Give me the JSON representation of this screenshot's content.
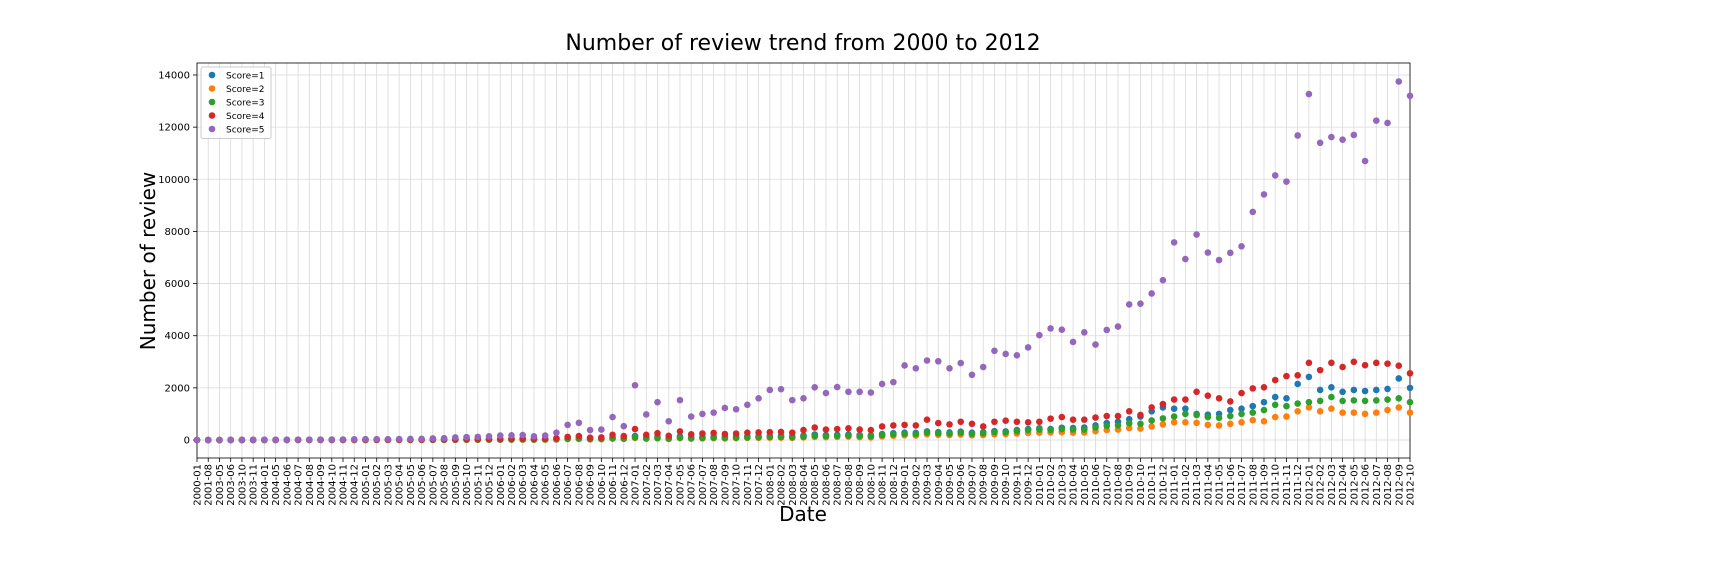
{
  "chart_data": {
    "type": "scatter",
    "title": "Number of review trend from 2000 to 2012",
    "x_label": "Date",
    "y_label": "Number of review",
    "grid": true,
    "legend": "upper left",
    "ylim": [
      -690,
      14460
    ],
    "yticks": [
      0,
      2000,
      4000,
      6000,
      8000,
      10000,
      12000,
      14000
    ],
    "categories": [
      "2000-01",
      "2001-08",
      "2003-05",
      "2003-06",
      "2003-10",
      "2003-11",
      "2004-01",
      "2004-05",
      "2004-06",
      "2004-07",
      "2004-08",
      "2004-09",
      "2004-10",
      "2004-11",
      "2004-12",
      "2005-01",
      "2005-02",
      "2005-03",
      "2005-04",
      "2005-05",
      "2005-06",
      "2005-07",
      "2005-08",
      "2005-09",
      "2005-10",
      "2005-11",
      "2005-12",
      "2006-01",
      "2006-02",
      "2006-03",
      "2006-04",
      "2006-05",
      "2006-06",
      "2006-07",
      "2006-08",
      "2006-09",
      "2006-10",
      "2006-11",
      "2006-12",
      "2007-01",
      "2007-02",
      "2007-03",
      "2007-04",
      "2007-05",
      "2007-06",
      "2007-07",
      "2007-08",
      "2007-09",
      "2007-10",
      "2007-11",
      "2007-12",
      "2008-01",
      "2008-02",
      "2008-03",
      "2008-04",
      "2008-05",
      "2008-06",
      "2008-07",
      "2008-08",
      "2008-09",
      "2008-10",
      "2008-11",
      "2008-12",
      "2009-01",
      "2009-02",
      "2009-03",
      "2009-04",
      "2009-05",
      "2009-06",
      "2009-07",
      "2009-08",
      "2009-09",
      "2009-10",
      "2009-11",
      "2009-12",
      "2010-01",
      "2010-02",
      "2010-03",
      "2010-04",
      "2010-05",
      "2010-06",
      "2010-07",
      "2010-08",
      "2010-09",
      "2010-10",
      "2010-11",
      "2010-12",
      "2011-01",
      "2011-02",
      "2011-03",
      "2011-04",
      "2011-05",
      "2011-06",
      "2011-07",
      "2011-08",
      "2011-09",
      "2011-10",
      "2011-11",
      "2011-12",
      "2012-01",
      "2012-02",
      "2012-03",
      "2012-04",
      "2012-05",
      "2012-06",
      "2012-07",
      "2012-08",
      "2012-09",
      "2012-10"
    ],
    "series": [
      {
        "name": "Score=1",
        "color": "#1f77b4",
        "values": [
          0,
          0,
          0,
          1,
          1,
          1,
          2,
          2,
          2,
          3,
          3,
          3,
          4,
          4,
          5,
          6,
          6,
          6,
          7,
          7,
          8,
          10,
          12,
          14,
          16,
          18,
          20,
          22,
          25,
          28,
          25,
          28,
          35,
          60,
          70,
          45,
          50,
          90,
          70,
          150,
          90,
          120,
          80,
          140,
          100,
          110,
          120,
          110,
          120,
          130,
          140,
          150,
          160,
          140,
          170,
          210,
          190,
          200,
          210,
          190,
          180,
          230,
          260,
          280,
          270,
          330,
          300,
          290,
          320,
          280,
          300,
          340,
          330,
          380,
          420,
          450,
          420,
          470,
          460,
          480,
          560,
          650,
          700,
          800,
          900,
          1100,
          1250,
          1200,
          1200,
          1000,
          970,
          1000,
          1150,
          1200,
          1300,
          1450,
          1650,
          1600,
          2150,
          2420,
          1920,
          2020,
          1850,
          1920,
          1880,
          1920,
          1960,
          2360,
          2000
        ]
      },
      {
        "name": "Score=2",
        "color": "#ff7f0e",
        "values": [
          0,
          0,
          0,
          1,
          1,
          1,
          1,
          1,
          2,
          2,
          2,
          2,
          2,
          3,
          3,
          3,
          4,
          4,
          4,
          5,
          5,
          6,
          7,
          8,
          9,
          10,
          11,
          12,
          14,
          15,
          14,
          15,
          20,
          35,
          40,
          25,
          30,
          50,
          40,
          80,
          50,
          60,
          40,
          70,
          50,
          60,
          70,
          60,
          70,
          80,
          80,
          90,
          90,
          80,
          100,
          120,
          110,
          120,
          130,
          110,
          100,
          140,
          160,
          180,
          170,
          220,
          200,
          190,
          210,
          180,
          190,
          220,
          230,
          250,
          270,
          280,
          290,
          300,
          280,
          290,
          340,
          380,
          400,
          460,
          440,
          520,
          600,
          680,
          680,
          660,
          580,
          560,
          620,
          680,
          760,
          720,
          880,
          900,
          1100,
          1250,
          1100,
          1200,
          1050,
          1050,
          1000,
          1050,
          1150,
          1250,
          1050
        ]
      },
      {
        "name": "Score=3",
        "color": "#2ca02c",
        "values": [
          0,
          0,
          0,
          1,
          1,
          1,
          1,
          2,
          2,
          2,
          2,
          3,
          3,
          3,
          4,
          4,
          5,
          5,
          5,
          6,
          6,
          8,
          10,
          11,
          12,
          14,
          15,
          17,
          19,
          21,
          19,
          21,
          27,
          45,
          55,
          35,
          40,
          70,
          55,
          100,
          60,
          80,
          50,
          90,
          70,
          80,
          90,
          80,
          90,
          100,
          110,
          120,
          120,
          110,
          130,
          160,
          150,
          160,
          170,
          150,
          140,
          190,
          220,
          240,
          230,
          290,
          260,
          250,
          280,
          240,
          260,
          300,
          300,
          340,
          380,
          400,
          380,
          420,
          400,
          400,
          480,
          540,
          560,
          640,
          620,
          750,
          830,
          900,
          1000,
          960,
          880,
          850,
          920,
          1000,
          1050,
          1150,
          1350,
          1300,
          1400,
          1450,
          1500,
          1650,
          1500,
          1520,
          1500,
          1520,
          1550,
          1600,
          1450
        ]
      },
      {
        "name": "Score=4",
        "color": "#d62728",
        "values": [
          0,
          0,
          0,
          2,
          2,
          2,
          3,
          3,
          4,
          5,
          5,
          5,
          6,
          6,
          8,
          10,
          10,
          10,
          12,
          12,
          14,
          18,
          20,
          25,
          30,
          35,
          40,
          45,
          50,
          55,
          45,
          50,
          70,
          120,
          150,
          90,
          100,
          200,
          150,
          420,
          200,
          260,
          160,
          330,
          220,
          250,
          270,
          230,
          250,
          280,
          290,
          300,
          310,
          280,
          380,
          480,
          400,
          420,
          450,
          400,
          380,
          520,
          560,
          580,
          560,
          780,
          650,
          600,
          700,
          620,
          520,
          700,
          740,
          700,
          680,
          700,
          820,
          880,
          780,
          780,
          860,
          920,
          920,
          1100,
          960,
          1250,
          1380,
          1550,
          1550,
          1850,
          1700,
          1600,
          1480,
          1800,
          1980,
          2020,
          2300,
          2450,
          2480,
          2960,
          2680,
          2960,
          2800,
          3000,
          2870,
          2960,
          2930,
          2850,
          2560
        ]
      },
      {
        "name": "Score=5",
        "color": "#9467bd",
        "values": [
          0,
          0,
          0,
          5,
          5,
          5,
          10,
          10,
          10,
          15,
          15,
          15,
          20,
          20,
          25,
          30,
          30,
          30,
          35,
          40,
          45,
          60,
          70,
          100,
          110,
          120,
          140,
          170,
          180,
          190,
          140,
          170,
          280,
          580,
          660,
          380,
          400,
          880,
          530,
          2100,
          980,
          1450,
          720,
          1530,
          900,
          1000,
          1050,
          1230,
          1180,
          1350,
          1600,
          1920,
          1950,
          1530,
          1600,
          2020,
          1800,
          2030,
          1850,
          1850,
          1820,
          2150,
          2220,
          2860,
          2750,
          3050,
          3020,
          2750,
          2950,
          2500,
          2800,
          3420,
          3300,
          3250,
          3550,
          4020,
          4280,
          4230,
          3760,
          4130,
          3660,
          4220,
          4350,
          5200,
          5230,
          5620,
          6130,
          7580,
          6940,
          7880,
          7190,
          6900,
          7180,
          7430,
          8750,
          9420,
          10150,
          9910,
          11680,
          13270,
          11400,
          11620,
          11520,
          11700,
          10700,
          12250,
          12160,
          13750,
          13200
        ]
      }
    ]
  }
}
